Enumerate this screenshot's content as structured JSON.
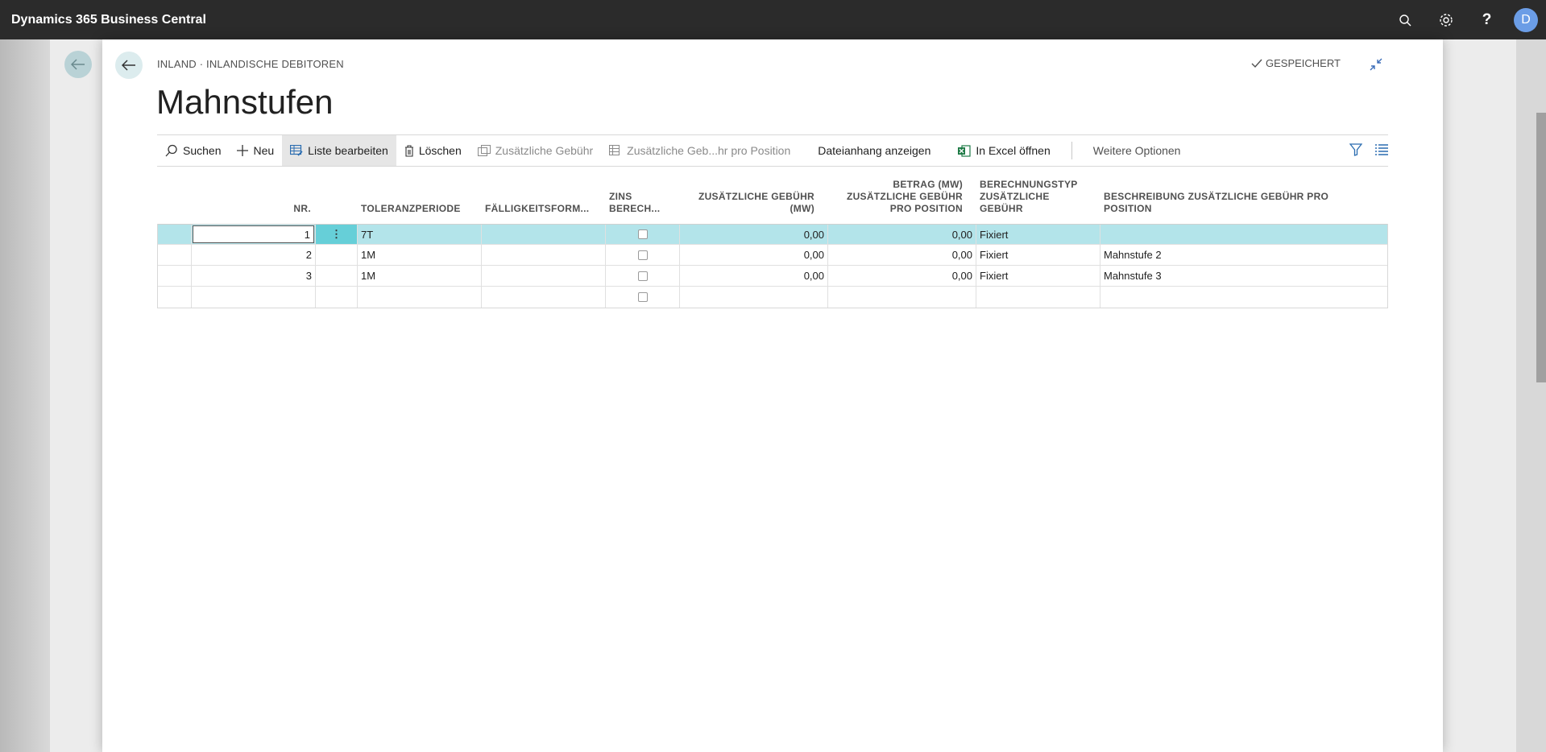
{
  "app": {
    "title": "Dynamics 365 Business Central",
    "avatar_letter": "D"
  },
  "dialog": {
    "breadcrumb": "INLAND · INLANDISCHE DEBITOREN",
    "saved_status": "GESPEICHERT",
    "page_title": "Mahnstufen"
  },
  "actions": {
    "search": "Suchen",
    "new": "Neu",
    "edit_list": "Liste bearbeiten",
    "delete": "Löschen",
    "additional_fee": "Zusätzliche Gebühr",
    "additional_fee_per_line": "Zusätzliche Geb...hr pro Position",
    "show_attachments": "Dateianhang anzeigen",
    "open_excel": "In Excel öffnen",
    "more_options": "Weitere Optionen"
  },
  "table": {
    "headers": {
      "nr": "NR.",
      "grace": "TOLERANZPERIODE",
      "due_date": "FÄLLIGKEITSFORM...",
      "interest_1": "ZINS",
      "interest_2": "BERECH...",
      "fee_1": "ZUSÄTZLICHE GEBÜHR",
      "fee_2": "(MW)",
      "line_fee_1": "BETRAG (MW)",
      "line_fee_2": "ZUSÄTZLICHE GEBÜHR",
      "line_fee_3": "PRO POSITION",
      "calc_1": "BERECHNUNGSTYP",
      "calc_2": "ZUSÄTZLICHE",
      "calc_3": "GEBÜHR",
      "desc_1": "BESCHREIBUNG ZUSÄTZLICHE GEBÜHR PRO",
      "desc_2": "POSITION"
    },
    "rows": [
      {
        "nr": "1",
        "grace": "7T",
        "due": "",
        "fee": "0,00",
        "line_fee": "0,00",
        "calc": "Fixiert",
        "desc": ""
      },
      {
        "nr": "2",
        "grace": "1M",
        "due": "",
        "fee": "0,00",
        "line_fee": "0,00",
        "calc": "Fixiert",
        "desc": "Mahnstufe 2"
      },
      {
        "nr": "3",
        "grace": "1M",
        "due": "",
        "fee": "0,00",
        "line_fee": "0,00",
        "calc": "Fixiert",
        "desc": "Mahnstufe 3"
      }
    ]
  },
  "colors": {
    "appbar": "#2b2b2b",
    "selected_row": "#b3e4ea",
    "accent": "#3b6db8",
    "excel": "#1d7a45"
  }
}
